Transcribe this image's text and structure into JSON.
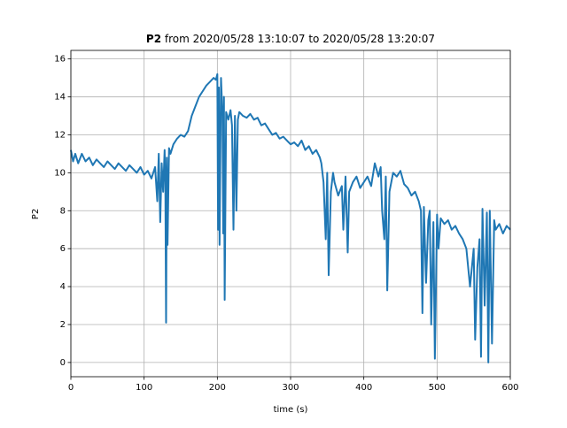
{
  "chart_data": {
    "type": "line",
    "title": {
      "bold": "P2",
      "rest": "from 2020/05/28 13:10:07 to 2020/05/28 13:20:07"
    },
    "xlabel": "time (s)",
    "ylabel": "P2",
    "xlim": [
      0,
      600
    ],
    "ylim": [
      -0.75,
      16.45
    ],
    "xticks": [
      0,
      100,
      200,
      300,
      400,
      500,
      600
    ],
    "yticks": [
      0,
      2,
      4,
      6,
      8,
      10,
      12,
      14,
      16
    ],
    "grid": true,
    "x": [
      0,
      3,
      6,
      10,
      15,
      20,
      25,
      30,
      35,
      40,
      45,
      50,
      55,
      60,
      65,
      70,
      75,
      80,
      85,
      90,
      95,
      100,
      105,
      110,
      115,
      118,
      120,
      122,
      124,
      126,
      128,
      129,
      130,
      131,
      132,
      134,
      136,
      140,
      145,
      150,
      155,
      160,
      165,
      170,
      175,
      180,
      185,
      190,
      195,
      198,
      200,
      201,
      202,
      203,
      205,
      207,
      208,
      209,
      210,
      212,
      215,
      218,
      220,
      222,
      224,
      226,
      228,
      230,
      235,
      240,
      245,
      250,
      255,
      260,
      265,
      270,
      275,
      280,
      285,
      290,
      295,
      300,
      305,
      310,
      315,
      320,
      325,
      330,
      335,
      340,
      342,
      345,
      348,
      350,
      352,
      355,
      358,
      360,
      365,
      370,
      372,
      375,
      378,
      380,
      385,
      390,
      395,
      400,
      405,
      410,
      415,
      420,
      423,
      425,
      428,
      430,
      432,
      435,
      440,
      445,
      450,
      455,
      460,
      465,
      470,
      475,
      478,
      480,
      482,
      485,
      488,
      490,
      492,
      495,
      497,
      500,
      502,
      505,
      510,
      515,
      520,
      525,
      530,
      535,
      540,
      545,
      550,
      552,
      555,
      558,
      560,
      562,
      565,
      568,
      570,
      572,
      575,
      578,
      580,
      585,
      590,
      595,
      600
    ],
    "series": [
      {
        "name": "P2",
        "color": "#1f77b4",
        "values": [
          11.2,
          10.6,
          11.0,
          10.5,
          11.0,
          10.6,
          10.8,
          10.4,
          10.7,
          10.5,
          10.3,
          10.6,
          10.4,
          10.2,
          10.5,
          10.3,
          10.1,
          10.4,
          10.2,
          10.0,
          10.3,
          9.9,
          10.1,
          9.7,
          10.3,
          8.5,
          11.0,
          7.4,
          10.5,
          9.0,
          11.2,
          9.5,
          2.1,
          10.8,
          6.2,
          11.3,
          11.0,
          11.5,
          11.8,
          12.0,
          11.9,
          12.2,
          13.0,
          13.5,
          14.0,
          14.3,
          14.6,
          14.8,
          15.0,
          14.9,
          15.2,
          7.0,
          14.5,
          6.2,
          15.0,
          13.0,
          6.8,
          14.0,
          3.3,
          13.2,
          12.8,
          13.3,
          12.5,
          7.0,
          13.0,
          8.0,
          12.8,
          13.2,
          13.0,
          12.9,
          13.1,
          12.8,
          12.9,
          12.5,
          12.6,
          12.3,
          12.0,
          12.1,
          11.8,
          11.9,
          11.7,
          11.5,
          11.6,
          11.4,
          11.7,
          11.2,
          11.4,
          11.0,
          11.2,
          10.8,
          10.5,
          9.5,
          6.5,
          10.0,
          4.6,
          9.0,
          10.0,
          9.5,
          8.8,
          9.3,
          7.0,
          9.8,
          5.8,
          9.0,
          9.5,
          9.8,
          9.2,
          9.5,
          9.8,
          9.3,
          10.5,
          9.8,
          10.3,
          8.0,
          6.5,
          9.8,
          3.8,
          9.0,
          10.0,
          9.8,
          10.1,
          9.4,
          9.2,
          8.8,
          9.0,
          8.5,
          8.0,
          2.6,
          8.2,
          4.2,
          7.5,
          8.0,
          2.0,
          7.4,
          0.2,
          7.8,
          6.0,
          7.6,
          7.3,
          7.5,
          7.0,
          7.2,
          6.8,
          6.5,
          6.0,
          4.0,
          6.0,
          1.2,
          5.0,
          6.5,
          0.3,
          8.1,
          3.0,
          7.9,
          0.0,
          8.0,
          1.0,
          7.5,
          7.0,
          7.3,
          6.8,
          7.2,
          7.0
        ]
      }
    ]
  }
}
